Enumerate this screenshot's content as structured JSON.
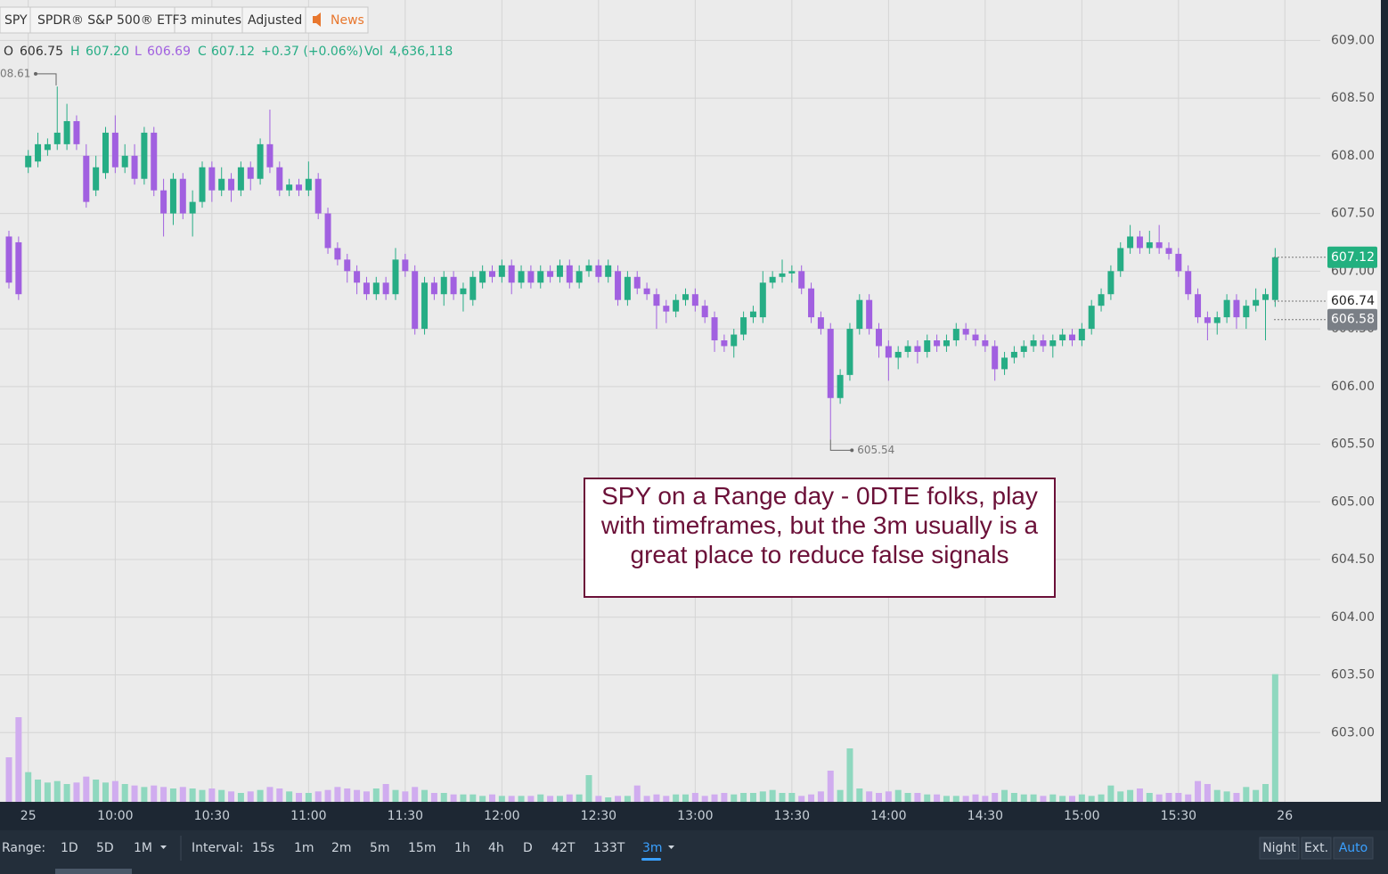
{
  "header": {
    "symbol": "SPY",
    "name": "SPDR® S&P 500® ETF",
    "interval": "3 minutes",
    "adjusted": "Adjusted",
    "news": "News"
  },
  "quote": {
    "o_label": "O",
    "open": "606.75",
    "h_label": "H",
    "high": "607.20",
    "l_label": "L",
    "low": "606.69",
    "c_label": "C",
    "close": "607.12",
    "change": "+0.37 (+0.06%)",
    "vol_label": "Vol",
    "volume": "4,636,118"
  },
  "chart_data": {
    "type": "candlestick",
    "ohlc": [
      [
        607.3,
        607.35,
        606.85,
        606.9
      ],
      [
        607.25,
        607.3,
        606.75,
        606.8
      ],
      [
        607.9,
        608.05,
        607.85,
        608.0
      ],
      [
        607.95,
        608.2,
        607.9,
        608.1
      ],
      [
        608.05,
        608.15,
        608.0,
        608.1
      ],
      [
        608.1,
        608.6,
        608.05,
        608.2
      ],
      [
        608.1,
        608.45,
        608.05,
        608.3
      ],
      [
        608.3,
        608.35,
        608.05,
        608.1
      ],
      [
        608.0,
        608.1,
        607.55,
        607.6
      ],
      [
        607.7,
        608.0,
        607.65,
        607.9
      ],
      [
        607.85,
        608.25,
        607.8,
        608.2
      ],
      [
        608.2,
        608.35,
        607.85,
        607.9
      ],
      [
        607.9,
        608.1,
        607.85,
        608.0
      ],
      [
        608.0,
        608.1,
        607.75,
        607.8
      ],
      [
        607.8,
        608.25,
        607.75,
        608.2
      ],
      [
        608.2,
        608.25,
        607.65,
        607.7
      ],
      [
        607.7,
        607.8,
        607.3,
        607.5
      ],
      [
        607.5,
        607.85,
        607.4,
        607.8
      ],
      [
        607.8,
        607.85,
        607.45,
        607.5
      ],
      [
        607.5,
        607.7,
        607.3,
        607.6
      ],
      [
        607.6,
        607.95,
        607.55,
        607.9
      ],
      [
        607.9,
        607.95,
        607.6,
        607.7
      ],
      [
        607.7,
        607.9,
        607.65,
        607.8
      ],
      [
        607.8,
        607.85,
        607.6,
        607.7
      ],
      [
        607.7,
        607.95,
        607.65,
        607.9
      ],
      [
        607.9,
        607.95,
        607.7,
        607.8
      ],
      [
        607.8,
        608.15,
        607.75,
        608.1
      ],
      [
        608.1,
        608.4,
        607.85,
        607.9
      ],
      [
        607.9,
        607.95,
        607.65,
        607.7
      ],
      [
        607.7,
        607.8,
        607.65,
        607.75
      ],
      [
        607.75,
        607.8,
        607.65,
        607.7
      ],
      [
        607.7,
        607.95,
        607.65,
        607.8
      ],
      [
        607.8,
        607.85,
        607.45,
        607.5
      ],
      [
        607.5,
        607.55,
        607.15,
        607.2
      ],
      [
        607.2,
        607.25,
        607.05,
        607.1
      ],
      [
        607.1,
        607.15,
        606.9,
        607.0
      ],
      [
        607.0,
        607.05,
        606.8,
        606.9
      ],
      [
        606.9,
        606.95,
        606.75,
        606.8
      ],
      [
        606.8,
        606.95,
        606.75,
        606.9
      ],
      [
        606.9,
        606.95,
        606.75,
        606.8
      ],
      [
        606.8,
        607.2,
        606.75,
        607.1
      ],
      [
        607.1,
        607.15,
        606.95,
        607.0
      ],
      [
        607.0,
        607.05,
        606.45,
        606.5
      ],
      [
        606.5,
        606.95,
        606.45,
        606.9
      ],
      [
        606.9,
        606.95,
        606.75,
        606.8
      ],
      [
        606.8,
        607.0,
        606.7,
        606.95
      ],
      [
        606.95,
        607.0,
        606.75,
        606.8
      ],
      [
        606.8,
        606.9,
        606.65,
        606.85
      ],
      [
        606.75,
        607.0,
        606.7,
        606.95
      ],
      [
        606.9,
        607.05,
        606.85,
        607.0
      ],
      [
        607.0,
        607.05,
        606.9,
        606.95
      ],
      [
        606.95,
        607.1,
        606.9,
        607.05
      ],
      [
        607.05,
        607.1,
        606.8,
        606.9
      ],
      [
        606.9,
        607.05,
        606.85,
        607.0
      ],
      [
        607.0,
        607.05,
        606.85,
        606.9
      ],
      [
        606.9,
        607.05,
        606.85,
        607.0
      ],
      [
        607.0,
        607.05,
        606.9,
        606.95
      ],
      [
        606.95,
        607.1,
        606.9,
        607.05
      ],
      [
        607.05,
        607.1,
        606.85,
        606.9
      ],
      [
        606.9,
        607.05,
        606.85,
        607.0
      ],
      [
        607.0,
        607.1,
        606.95,
        607.05
      ],
      [
        607.05,
        607.1,
        606.9,
        606.95
      ],
      [
        606.95,
        607.1,
        606.9,
        607.05
      ],
      [
        607.0,
        607.05,
        606.7,
        606.75
      ],
      [
        606.75,
        607.0,
        606.7,
        606.95
      ],
      [
        606.95,
        607.0,
        606.8,
        606.85
      ],
      [
        606.85,
        606.9,
        606.75,
        606.8
      ],
      [
        606.8,
        606.85,
        606.5,
        606.7
      ],
      [
        606.7,
        606.75,
        606.55,
        606.65
      ],
      [
        606.65,
        606.8,
        606.6,
        606.75
      ],
      [
        606.75,
        606.85,
        606.7,
        606.8
      ],
      [
        606.8,
        606.85,
        606.65,
        606.7
      ],
      [
        606.7,
        606.75,
        606.55,
        606.6
      ],
      [
        606.6,
        606.65,
        606.3,
        606.4
      ],
      [
        606.4,
        606.45,
        606.3,
        606.35
      ],
      [
        606.35,
        606.5,
        606.25,
        606.45
      ],
      [
        606.45,
        606.65,
        606.4,
        606.6
      ],
      [
        606.6,
        606.7,
        606.55,
        606.65
      ],
      [
        606.6,
        607.0,
        606.55,
        606.9
      ],
      [
        606.9,
        607.0,
        606.85,
        606.95
      ],
      [
        606.95,
        607.1,
        606.9,
        606.98
      ],
      [
        606.98,
        607.05,
        606.9,
        607.0
      ],
      [
        607.0,
        607.05,
        606.8,
        606.85
      ],
      [
        606.85,
        606.9,
        606.55,
        606.6
      ],
      [
        606.6,
        606.65,
        606.45,
        606.5
      ],
      [
        606.5,
        606.55,
        605.54,
        605.9
      ],
      [
        605.9,
        606.15,
        605.85,
        606.1
      ],
      [
        606.1,
        606.55,
        606.05,
        606.5
      ],
      [
        606.5,
        606.8,
        606.45,
        606.75
      ],
      [
        606.75,
        606.8,
        606.45,
        606.5
      ],
      [
        606.5,
        606.55,
        606.25,
        606.35
      ],
      [
        606.35,
        606.4,
        606.05,
        606.25
      ],
      [
        606.25,
        606.35,
        606.15,
        606.3
      ],
      [
        606.3,
        606.4,
        606.25,
        606.35
      ],
      [
        606.35,
        606.4,
        606.2,
        606.3
      ],
      [
        606.3,
        606.45,
        606.25,
        606.4
      ],
      [
        606.4,
        606.45,
        606.3,
        606.35
      ],
      [
        606.35,
        606.45,
        606.3,
        606.4
      ],
      [
        606.4,
        606.55,
        606.35,
        606.5
      ],
      [
        606.5,
        606.55,
        606.4,
        606.45
      ],
      [
        606.45,
        606.5,
        606.35,
        606.4
      ],
      [
        606.4,
        606.45,
        606.3,
        606.35
      ],
      [
        606.35,
        606.4,
        606.05,
        606.15
      ],
      [
        606.15,
        606.3,
        606.1,
        606.25
      ],
      [
        606.25,
        606.35,
        606.2,
        606.3
      ],
      [
        606.3,
        606.4,
        606.25,
        606.35
      ],
      [
        606.35,
        606.45,
        606.3,
        606.4
      ],
      [
        606.4,
        606.45,
        606.3,
        606.35
      ],
      [
        606.35,
        606.45,
        606.25,
        606.4
      ],
      [
        606.4,
        606.5,
        606.35,
        606.45
      ],
      [
        606.45,
        606.5,
        606.35,
        606.4
      ],
      [
        606.4,
        606.55,
        606.35,
        606.5
      ],
      [
        606.5,
        606.75,
        606.45,
        606.7
      ],
      [
        606.7,
        606.85,
        606.65,
        606.8
      ],
      [
        606.8,
        607.05,
        606.75,
        607.0
      ],
      [
        607.0,
        607.25,
        606.95,
        607.2
      ],
      [
        607.2,
        607.4,
        607.15,
        607.3
      ],
      [
        607.3,
        607.35,
        607.15,
        607.2
      ],
      [
        607.2,
        607.35,
        607.15,
        607.25
      ],
      [
        607.25,
        607.4,
        607.15,
        607.2
      ],
      [
        607.2,
        607.25,
        607.1,
        607.15
      ],
      [
        607.15,
        607.2,
        606.95,
        607.0
      ],
      [
        607.0,
        607.05,
        606.75,
        606.8
      ],
      [
        606.8,
        606.85,
        606.55,
        606.6
      ],
      [
        606.6,
        606.65,
        606.4,
        606.55
      ],
      [
        606.55,
        606.65,
        606.45,
        606.6
      ],
      [
        606.6,
        606.8,
        606.55,
        606.75
      ],
      [
        606.75,
        606.8,
        606.5,
        606.6
      ],
      [
        606.6,
        606.75,
        606.5,
        606.7
      ],
      [
        606.7,
        606.85,
        606.65,
        606.75
      ],
      [
        606.75,
        606.85,
        606.4,
        606.8
      ],
      [
        606.75,
        607.2,
        606.69,
        607.12
      ]
    ],
    "volume": [
      300000,
      570000,
      200000,
      150000,
      130000,
      140000,
      120000,
      130000,
      170000,
      150000,
      130000,
      140000,
      120000,
      110000,
      100000,
      110000,
      100000,
      90000,
      100000,
      90000,
      80000,
      90000,
      80000,
      70000,
      60000,
      70000,
      80000,
      100000,
      90000,
      70000,
      60000,
      60000,
      70000,
      80000,
      100000,
      90000,
      80000,
      70000,
      90000,
      120000,
      80000,
      70000,
      100000,
      80000,
      60000,
      60000,
      50000,
      50000,
      50000,
      40000,
      50000,
      40000,
      40000,
      40000,
      40000,
      50000,
      40000,
      40000,
      50000,
      50000,
      180000,
      40000,
      30000,
      40000,
      40000,
      110000,
      40000,
      50000,
      40000,
      50000,
      50000,
      60000,
      40000,
      50000,
      60000,
      50000,
      60000,
      60000,
      70000,
      80000,
      60000,
      60000,
      40000,
      50000,
      70000,
      210000,
      80000,
      360000,
      90000,
      70000,
      60000,
      70000,
      80000,
      60000,
      60000,
      50000,
      50000,
      40000,
      40000,
      40000,
      50000,
      40000,
      60000,
      80000,
      60000,
      50000,
      50000,
      40000,
      50000,
      40000,
      40000,
      50000,
      40000,
      50000,
      110000,
      70000,
      80000,
      90000,
      60000,
      50000,
      60000,
      60000,
      50000,
      140000,
      120000,
      80000,
      70000,
      60000,
      100000,
      80000,
      120000,
      860000
    ],
    "volume_ylim": [
      0,
      1200000
    ],
    "up_color": "#26ad85",
    "down_color": "#a160e0",
    "volume_up_color": "#8fd8bf",
    "volume_down_color": "#d0acef",
    "ylim": [
      602.4,
      609.35
    ],
    "yticks": [
      {
        "value": 603,
        "label": "603.00"
      },
      {
        "value": 603.5,
        "label": "603.50"
      },
      {
        "value": 604,
        "label": "604.00"
      },
      {
        "value": 604.5,
        "label": "604.50"
      },
      {
        "value": 605,
        "label": "605.00"
      },
      {
        "value": 605.5,
        "label": "605.50"
      },
      {
        "value": 606,
        "label": "606.00"
      },
      {
        "value": 606.5,
        "label": "606.50"
      },
      {
        "value": 607,
        "label": "607.00"
      },
      {
        "value": 607.5,
        "label": "607.50"
      },
      {
        "value": 608,
        "label": "608.00"
      },
      {
        "value": 608.5,
        "label": "608.50"
      },
      {
        "value": 609,
        "label": "609.00"
      }
    ],
    "xticks": [
      {
        "value": 2,
        "label": "25"
      },
      {
        "value": 11,
        "label": "10:00"
      },
      {
        "value": 21,
        "label": "10:30"
      },
      {
        "value": 31,
        "label": "11:00"
      },
      {
        "value": 41,
        "label": "11:30"
      },
      {
        "value": 51,
        "label": "12:00"
      },
      {
        "value": 61,
        "label": "12:30"
      },
      {
        "value": 71,
        "label": "13:00"
      },
      {
        "value": 81,
        "label": "13:30"
      },
      {
        "value": 91,
        "label": "14:00"
      },
      {
        "value": 101,
        "label": "14:30"
      },
      {
        "value": 111,
        "label": "15:00"
      },
      {
        "value": 121,
        "label": "15:30"
      },
      {
        "value": 132,
        "label": "26"
      }
    ],
    "grid": true,
    "high_marker": {
      "value": 608.61,
      "label": "08.61"
    },
    "low_marker": 605.54,
    "price_tags": [
      {
        "value": 607.12,
        "color": "#22b07f"
      },
      {
        "value": 606.74,
        "color": "#ffffff"
      },
      {
        "value": 606.58,
        "color": "#7a7f86"
      }
    ],
    "annotation": "SPY on a Range day - 0DTE folks, play with timeframes, but the 3m usually is a great place to reduce false signals"
  },
  "toolbar": {
    "range_label": "Range:",
    "ranges": [
      "1D",
      "5D",
      "1M"
    ],
    "interval_label": "Interval:",
    "intervals": [
      "15s",
      "1m",
      "2m",
      "5m",
      "15m",
      "1h",
      "4h",
      "D",
      "42T",
      "133T",
      "3m"
    ],
    "session": [
      "Night",
      "Ext.",
      "Auto"
    ]
  }
}
